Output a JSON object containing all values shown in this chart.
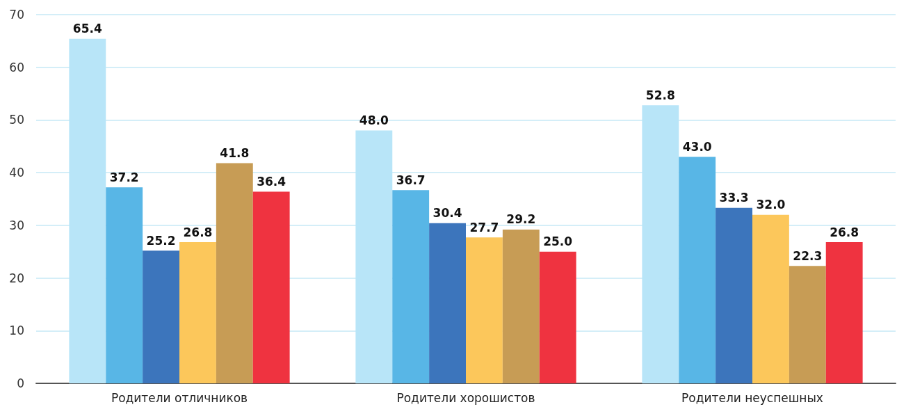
{
  "chart_data": {
    "type": "bar",
    "categories": [
      "Родители отличников",
      "Родители хорошистов",
      "Родители неуспешных"
    ],
    "series": [
      {
        "color": "#b8e5f8",
        "values": [
          65.4,
          48.0,
          52.8
        ],
        "value_labels": [
          "65.4",
          "48.0",
          "52.8"
        ]
      },
      {
        "color": "#58b6e6",
        "values": [
          37.2,
          36.7,
          43.0
        ],
        "value_labels": [
          "37.2",
          "36.7",
          "43.0"
        ]
      },
      {
        "color": "#3c75bc",
        "values": [
          25.2,
          30.4,
          33.3
        ],
        "value_labels": [
          "25.2",
          "30.4",
          "33.3"
        ]
      },
      {
        "color": "#fcc75b",
        "values": [
          26.8,
          27.7,
          32.0
        ],
        "value_labels": [
          "26.8",
          "27.7",
          "32.0"
        ]
      },
      {
        "color": "#c79c55",
        "values": [
          41.8,
          29.2,
          22.3
        ],
        "value_labels": [
          "41.8",
          "29.2",
          "22.3"
        ]
      },
      {
        "color": "#ef3340",
        "values": [
          36.4,
          25.0,
          26.8
        ],
        "value_labels": [
          "36.4",
          "25.0",
          "26.8"
        ]
      }
    ],
    "ylim": [
      0,
      70
    ],
    "yticks": [
      0,
      10,
      20,
      30,
      40,
      50,
      60,
      70
    ],
    "grid": "y",
    "legend": false
  }
}
